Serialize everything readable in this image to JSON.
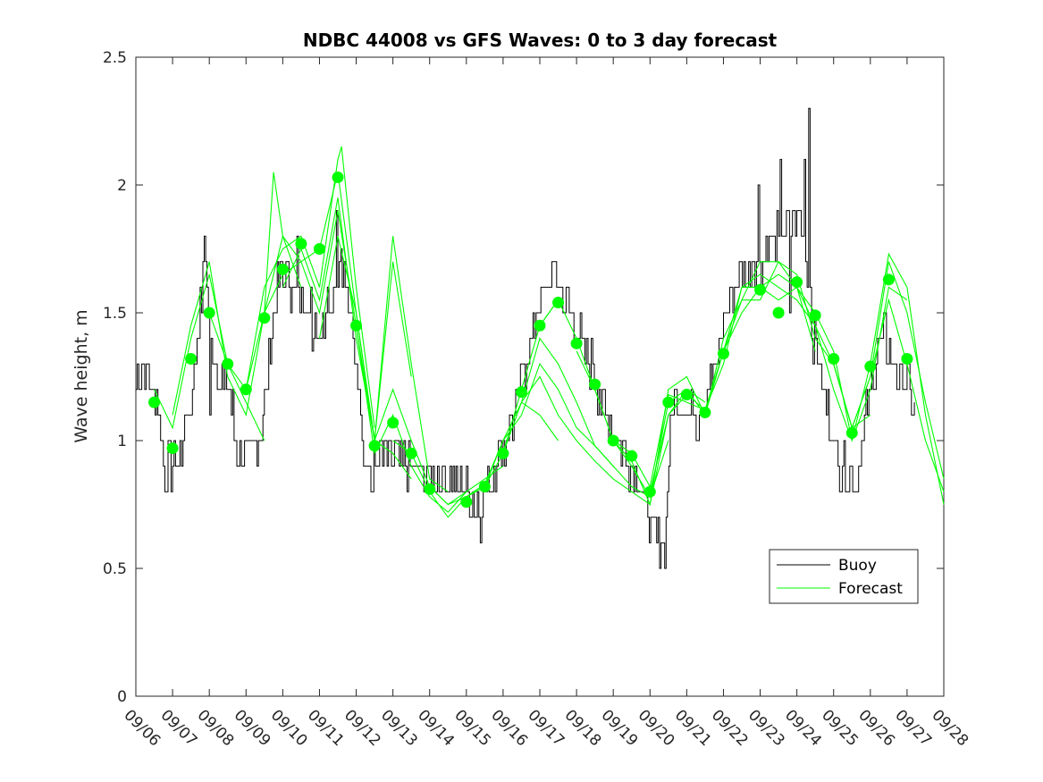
{
  "chart_data": {
    "type": "line",
    "title": "NDBC 44008 vs GFS Waves: 0 to 3 day forecast",
    "xlabel": "",
    "ylabel": "Wave height, m",
    "xlim": [
      0,
      22
    ],
    "ylim": [
      0,
      2.5
    ],
    "yticks": [
      0,
      0.5,
      1,
      1.5,
      2,
      2.5
    ],
    "ytick_labels": [
      "0",
      "0.5",
      "1",
      "1.5",
      "2",
      "2.5"
    ],
    "xtick_labels": [
      "09/06",
      "09/07",
      "09/08",
      "09/09",
      "09/10",
      "09/11",
      "09/12",
      "09/13",
      "09/14",
      "09/15",
      "09/16",
      "09/17",
      "09/18",
      "09/19",
      "09/20",
      "09/21",
      "09/22",
      "09/23",
      "09/24",
      "09/25",
      "09/26",
      "09/27",
      "09/28"
    ],
    "legend": {
      "placement": "lower-right",
      "entries": [
        {
          "name": "Buoy",
          "color": "#000000"
        },
        {
          "name": "Forecast",
          "color": "#00ff00"
        }
      ]
    },
    "buoy_anchors": [
      [
        0,
        1.25
      ],
      [
        0.2,
        1.3
      ],
      [
        0.45,
        1.2
      ],
      [
        0.6,
        1.15
      ],
      [
        0.75,
        0.9
      ],
      [
        1.0,
        0.9
      ],
      [
        1.2,
        0.95
      ],
      [
        1.5,
        1.15
      ],
      [
        1.75,
        1.55
      ],
      [
        1.9,
        1.7
      ],
      [
        2.05,
        1.35
      ],
      [
        2.3,
        1.25
      ],
      [
        2.6,
        1.15
      ],
      [
        2.75,
        0.95
      ],
      [
        3.0,
        0.9
      ],
      [
        3.3,
        0.95
      ],
      [
        3.5,
        1.15
      ],
      [
        3.7,
        1.45
      ],
      [
        3.85,
        1.6
      ],
      [
        4.0,
        1.65
      ],
      [
        4.3,
        1.6
      ],
      [
        4.6,
        1.55
      ],
      [
        4.8,
        1.5
      ],
      [
        5.0,
        1.45
      ],
      [
        5.3,
        1.55
      ],
      [
        5.5,
        1.7
      ],
      [
        5.7,
        1.6
      ],
      [
        6.0,
        1.3
      ],
      [
        6.2,
        1.0
      ],
      [
        6.4,
        0.85
      ],
      [
        6.6,
        0.95
      ],
      [
        7.0,
        0.95
      ],
      [
        7.3,
        0.9
      ],
      [
        7.6,
        0.88
      ],
      [
        8.0,
        0.85
      ],
      [
        8.3,
        0.85
      ],
      [
        8.6,
        0.85
      ],
      [
        9.0,
        0.8
      ],
      [
        9.3,
        0.75
      ],
      [
        9.5,
        0.78
      ],
      [
        9.7,
        0.88
      ],
      [
        10.0,
        0.95
      ],
      [
        10.3,
        1.1
      ],
      [
        10.6,
        1.3
      ],
      [
        10.9,
        1.5
      ],
      [
        11.2,
        1.6
      ],
      [
        11.5,
        1.65
      ],
      [
        11.8,
        1.5
      ],
      [
        12.1,
        1.4
      ],
      [
        12.4,
        1.3
      ],
      [
        12.7,
        1.15
      ],
      [
        13.0,
        1.05
      ],
      [
        13.3,
        0.95
      ],
      [
        13.6,
        0.85
      ],
      [
        13.9,
        0.75
      ],
      [
        14.1,
        0.65
      ],
      [
        14.3,
        0.6
      ],
      [
        14.4,
        0.6
      ],
      [
        14.55,
        1.05
      ],
      [
        14.7,
        1.2
      ],
      [
        15.0,
        1.15
      ],
      [
        15.3,
        1.1
      ],
      [
        15.6,
        1.2
      ],
      [
        15.8,
        1.3
      ],
      [
        16.0,
        1.5
      ],
      [
        16.3,
        1.6
      ],
      [
        16.6,
        1.65
      ],
      [
        16.9,
        1.7
      ],
      [
        17.2,
        1.75
      ],
      [
        17.5,
        1.8
      ],
      [
        17.8,
        1.85
      ],
      [
        18.0,
        1.9
      ],
      [
        18.2,
        1.75
      ],
      [
        18.4,
        1.45
      ],
      [
        18.6,
        1.3
      ],
      [
        18.8,
        1.15
      ],
      [
        19.0,
        1.0
      ],
      [
        19.2,
        0.9
      ],
      [
        19.4,
        0.85
      ],
      [
        19.6,
        0.85
      ],
      [
        19.8,
        1.0
      ],
      [
        20.0,
        1.2
      ],
      [
        20.2,
        1.35
      ],
      [
        20.4,
        1.4
      ],
      [
        20.6,
        1.3
      ],
      [
        20.8,
        1.25
      ],
      [
        21.0,
        1.2
      ],
      [
        21.2,
        1.15
      ]
    ],
    "buoy_spikes": [
      [
        1.85,
        1.8
      ],
      [
        2.0,
        1.1
      ],
      [
        4.4,
        1.8
      ],
      [
        4.8,
        1.35
      ],
      [
        5.45,
        1.9
      ],
      [
        5.6,
        1.75
      ],
      [
        6.45,
        0.8
      ],
      [
        9.4,
        0.6
      ],
      [
        16.95,
        2.0
      ],
      [
        17.55,
        2.1
      ],
      [
        17.8,
        1.5
      ],
      [
        18.2,
        2.1
      ],
      [
        18.3,
        2.3
      ],
      [
        18.35,
        1.6
      ],
      [
        19.55,
        0.8
      ]
    ],
    "forecast_runs": [
      [
        [
          0.5,
          1.2
        ],
        [
          1.0,
          1.05
        ],
        [
          1.5,
          1.4
        ],
        [
          2.0,
          1.65
        ],
        [
          2.5,
          1.3
        ],
        [
          3.0,
          1.15
        ],
        [
          3.5,
          1.0
        ]
      ],
      [
        [
          1.0,
          1.1
        ],
        [
          1.5,
          1.45
        ],
        [
          2.0,
          1.7
        ],
        [
          2.5,
          1.25
        ],
        [
          3.0,
          1.1
        ],
        [
          3.5,
          1.5
        ],
        [
          4.0,
          1.8
        ],
        [
          4.5,
          1.6
        ]
      ],
      [
        [
          2.0,
          1.5
        ],
        [
          2.5,
          1.3
        ],
        [
          3.0,
          1.2
        ],
        [
          3.5,
          1.6
        ],
        [
          4.0,
          1.75
        ],
        [
          4.5,
          1.8
        ],
        [
          5.0,
          1.6
        ],
        [
          5.5,
          2.1
        ],
        [
          5.6,
          2.15
        ],
        [
          6.0,
          1.6
        ],
        [
          6.5,
          1.05
        ]
      ],
      [
        [
          3.0,
          1.2
        ],
        [
          3.5,
          1.5
        ],
        [
          3.75,
          2.05
        ],
        [
          4.0,
          1.8
        ],
        [
          4.5,
          1.7
        ],
        [
          5.0,
          1.75
        ],
        [
          5.5,
          2.05
        ],
        [
          6.0,
          1.5
        ],
        [
          6.5,
          1.0
        ],
        [
          7.0,
          0.95
        ],
        [
          7.5,
          0.85
        ]
      ],
      [
        [
          3.5,
          1.5
        ],
        [
          4.0,
          1.65
        ],
        [
          4.5,
          1.7
        ],
        [
          5.0,
          1.5
        ],
        [
          5.5,
          1.9
        ],
        [
          6.0,
          1.45
        ],
        [
          6.5,
          1.0
        ],
        [
          7.0,
          1.8
        ],
        [
          7.5,
          1.3
        ],
        [
          8.0,
          0.85
        ],
        [
          8.5,
          0.8
        ]
      ],
      [
        [
          4.0,
          1.6
        ],
        [
          4.5,
          1.75
        ],
        [
          5.0,
          1.55
        ],
        [
          5.5,
          1.95
        ],
        [
          6.0,
          1.4
        ],
        [
          6.5,
          1.0
        ],
        [
          7.0,
          1.2
        ],
        [
          7.5,
          1.0
        ],
        [
          8.0,
          0.82
        ],
        [
          8.5,
          0.75
        ],
        [
          9.0,
          0.8
        ]
      ],
      [
        [
          5.0,
          1.4
        ],
        [
          5.5,
          1.8
        ],
        [
          6.0,
          1.5
        ],
        [
          6.5,
          1.0
        ],
        [
          7.0,
          1.7
        ],
        [
          7.5,
          1.25
        ]
      ],
      [
        [
          6.0,
          1.45
        ],
        [
          6.5,
          0.95
        ],
        [
          7.0,
          1.1
        ],
        [
          7.5,
          0.9
        ],
        [
          8.0,
          0.78
        ],
        [
          8.5,
          0.72
        ],
        [
          9.0,
          0.8
        ],
        [
          9.5,
          0.85
        ],
        [
          10.0,
          0.9
        ]
      ],
      [
        [
          7.0,
          1.0
        ],
        [
          7.5,
          0.95
        ],
        [
          8.0,
          0.8
        ],
        [
          8.5,
          0.7
        ],
        [
          9.0,
          0.78
        ],
        [
          9.5,
          0.82
        ],
        [
          10.0,
          0.95
        ],
        [
          10.5,
          1.2
        ],
        [
          11.0,
          1.45
        ],
        [
          11.5,
          1.55
        ]
      ],
      [
        [
          8.0,
          0.82
        ],
        [
          8.5,
          0.75
        ],
        [
          9.0,
          0.78
        ],
        [
          9.5,
          0.83
        ],
        [
          10.0,
          1.0
        ],
        [
          10.5,
          1.15
        ],
        [
          11.0,
          1.4
        ],
        [
          11.5,
          1.3
        ],
        [
          12.0,
          1.15
        ],
        [
          12.5,
          0.98
        ],
        [
          13.0,
          0.9
        ]
      ],
      [
        [
          9.0,
          0.78
        ],
        [
          9.5,
          0.82
        ],
        [
          10.0,
          1.0
        ],
        [
          10.5,
          1.1
        ],
        [
          11.0,
          1.3
        ],
        [
          11.5,
          1.2
        ],
        [
          12.0,
          1.05
        ],
        [
          12.5,
          0.98
        ],
        [
          13.0,
          0.9
        ],
        [
          13.5,
          0.82
        ],
        [
          14.0,
          0.78
        ],
        [
          14.5,
          1.0
        ]
      ],
      [
        [
          10.0,
          0.95
        ],
        [
          10.5,
          1.15
        ],
        [
          11.0,
          1.25
        ],
        [
          11.5,
          1.1
        ],
        [
          12.0,
          1.0
        ],
        [
          12.5,
          0.92
        ],
        [
          13.0,
          0.85
        ],
        [
          13.5,
          0.8
        ],
        [
          14.0,
          0.75
        ],
        [
          14.5,
          1.1
        ],
        [
          15.0,
          1.2
        ],
        [
          15.5,
          1.15
        ]
      ],
      [
        [
          10.5,
          1.15
        ],
        [
          11.0,
          1.1
        ],
        [
          11.5,
          1.0
        ]
      ],
      [
        [
          11.0,
          1.45
        ],
        [
          11.5,
          1.55
        ],
        [
          12.0,
          1.4
        ],
        [
          12.5,
          1.2
        ],
        [
          13.0,
          1.0
        ],
        [
          13.5,
          0.9
        ],
        [
          14.0,
          0.78
        ],
        [
          14.5,
          1.15
        ],
        [
          15.0,
          1.2
        ],
        [
          15.5,
          1.1
        ],
        [
          16.0,
          1.35
        ],
        [
          16.5,
          1.55
        ],
        [
          17.0,
          1.55
        ]
      ],
      [
        [
          12.0,
          1.35
        ],
        [
          12.5,
          1.2
        ],
        [
          13.0,
          1.0
        ],
        [
          13.5,
          0.95
        ],
        [
          14.0,
          0.82
        ],
        [
          14.5,
          1.18
        ],
        [
          15.0,
          1.15
        ],
        [
          15.5,
          1.12
        ],
        [
          16.0,
          1.35
        ],
        [
          16.5,
          1.6
        ],
        [
          17.0,
          1.6
        ],
        [
          17.5,
          1.65
        ],
        [
          18.0,
          1.6
        ]
      ],
      [
        [
          13.0,
          1.0
        ],
        [
          13.5,
          0.92
        ],
        [
          14.0,
          0.75
        ],
        [
          14.5,
          1.2
        ],
        [
          15.0,
          1.25
        ],
        [
          15.5,
          1.1
        ],
        [
          16.0,
          1.4
        ],
        [
          16.5,
          1.55
        ],
        [
          17.0,
          1.7
        ],
        [
          17.5,
          1.7
        ],
        [
          18.0,
          1.6
        ],
        [
          18.5,
          1.35
        ]
      ],
      [
        [
          14.0,
          0.8
        ],
        [
          14.5,
          1.1
        ],
        [
          15.0,
          1.18
        ],
        [
          15.5,
          1.12
        ],
        [
          16.0,
          1.3
        ],
        [
          16.5,
          1.6
        ],
        [
          17.0,
          1.65
        ],
        [
          17.5,
          1.6
        ],
        [
          18.0,
          1.55
        ],
        [
          18.5,
          1.45
        ],
        [
          19.0,
          1.3
        ],
        [
          19.5,
          1.05
        ],
        [
          20.0,
          1.1
        ]
      ],
      [
        [
          16.0,
          1.35
        ],
        [
          16.5,
          1.5
        ],
        [
          17.0,
          1.6
        ],
        [
          17.5,
          1.55
        ],
        [
          18.0,
          1.6
        ],
        [
          18.5,
          1.45
        ],
        [
          19.0,
          1.2
        ],
        [
          19.5,
          1.0
        ],
        [
          20.0,
          1.2
        ],
        [
          20.5,
          1.6
        ],
        [
          21.0,
          1.55
        ]
      ],
      [
        [
          17.0,
          1.55
        ],
        [
          17.5,
          1.7
        ],
        [
          18.0,
          1.65
        ],
        [
          18.5,
          1.4
        ],
        [
          19.0,
          1.3
        ],
        [
          19.5,
          1.05
        ],
        [
          20.0,
          1.25
        ],
        [
          20.5,
          1.7
        ],
        [
          21.0,
          1.5
        ],
        [
          21.5,
          1.15
        ],
        [
          22.0,
          0.85
        ]
      ],
      [
        [
          18.0,
          1.6
        ],
        [
          18.5,
          1.5
        ],
        [
          19.0,
          1.35
        ],
        [
          19.5,
          1.0
        ],
        [
          20.0,
          1.3
        ],
        [
          20.5,
          1.73
        ],
        [
          21.0,
          1.6
        ],
        [
          21.5,
          1.1
        ],
        [
          22.0,
          0.75
        ]
      ],
      [
        [
          19.0,
          1.3
        ],
        [
          19.5,
          1.05
        ],
        [
          20.0,
          1.25
        ],
        [
          20.5,
          1.55
        ],
        [
          21.0,
          1.3
        ],
        [
          21.5,
          1.0
        ],
        [
          22.0,
          0.8
        ]
      ]
    ],
    "forecast_markers": [
      [
        0.5,
        1.15
      ],
      [
        1.0,
        0.97
      ],
      [
        1.5,
        1.32
      ],
      [
        2.0,
        1.5
      ],
      [
        2.5,
        1.3
      ],
      [
        3.0,
        1.2
      ],
      [
        3.5,
        1.48
      ],
      [
        4.0,
        1.67
      ],
      [
        4.5,
        1.77
      ],
      [
        5.0,
        1.75
      ],
      [
        5.5,
        2.03
      ],
      [
        6.0,
        1.45
      ],
      [
        6.5,
        0.98
      ],
      [
        7.0,
        1.07
      ],
      [
        7.5,
        0.95
      ],
      [
        8.0,
        0.81
      ],
      [
        9.0,
        0.76
      ],
      [
        9.5,
        0.82
      ],
      [
        10.0,
        0.95
      ],
      [
        10.5,
        1.19
      ],
      [
        11.0,
        1.45
      ],
      [
        11.5,
        1.54
      ],
      [
        12.0,
        1.38
      ],
      [
        12.5,
        1.22
      ],
      [
        13.0,
        1.0
      ],
      [
        13.5,
        0.94
      ],
      [
        14.0,
        0.8
      ],
      [
        14.5,
        1.15
      ],
      [
        15.0,
        1.18
      ],
      [
        15.5,
        1.11
      ],
      [
        16.0,
        1.34
      ],
      [
        17.0,
        1.59
      ],
      [
        17.5,
        1.5
      ],
      [
        18.0,
        1.62
      ],
      [
        18.5,
        1.49
      ],
      [
        19.0,
        1.32
      ],
      [
        19.5,
        1.03
      ],
      [
        20.0,
        1.29
      ],
      [
        20.5,
        1.63
      ],
      [
        21.0,
        1.32
      ]
    ]
  }
}
